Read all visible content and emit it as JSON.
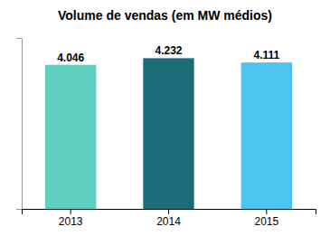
{
  "chart_data": {
    "type": "bar",
    "title": "Volume de vendas (em MW médios)",
    "categories": [
      "2013",
      "2014",
      "2015"
    ],
    "values": [
      4.046,
      4.232,
      4.111
    ],
    "colors": [
      "#5ecfbe",
      "#1b6b78",
      "#4dc3f0"
    ],
    "ylim": [
      0,
      4.8
    ],
    "yticks": [],
    "grid": false,
    "data_labels": true,
    "tick_labels": "x"
  }
}
